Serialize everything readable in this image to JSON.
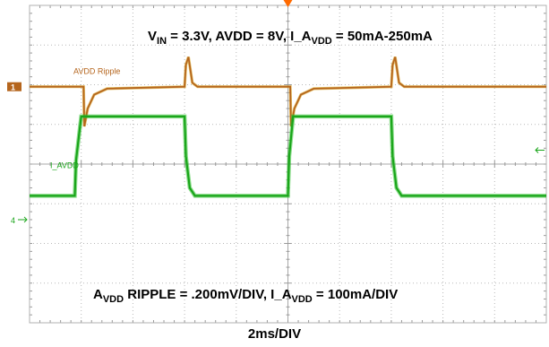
{
  "chart_data": {
    "type": "line",
    "title_top": {
      "vin_main": "V",
      "vin_sub": "IN",
      "vin_value": " = 3.3V, AVDD = 8V, I_A",
      "iavdd_sub": "VDD",
      "iavdd_value": " = 50mA-250mA"
    },
    "title_bottom": {
      "avdd_main": "A",
      "avdd_sub": "VDD",
      "ripple_text": " RIPPLE = .200mV/DIV, I_A",
      "iavdd_sub": "VDD",
      "iavdd_value": " = 100mA/DIV"
    },
    "xlabel": "2ms/DIV",
    "x_unit": "ms",
    "xlim": [
      0,
      20
    ],
    "y_divisions": 8,
    "grid": true,
    "series": [
      {
        "name": "AVDD Ripple",
        "channel": "1",
        "color": "#b5651d",
        "baseline_div": 5.95,
        "x": [
          0,
          2.09,
          2.12,
          2.25,
          2.5,
          3.0,
          6.0,
          6.05,
          6.15,
          6.3,
          6.5,
          8.0,
          10.0,
          10.09,
          10.12,
          10.25,
          10.5,
          11.0,
          14.0,
          14.05,
          14.15,
          14.3,
          14.5,
          16.0,
          20.0
        ],
        "y_div": [
          0,
          0,
          -1.0,
          -0.55,
          -0.2,
          -0.05,
          0,
          0.55,
          0.75,
          0.1,
          0,
          0,
          0,
          0,
          -1.0,
          -0.55,
          -0.2,
          -0.05,
          0,
          0.55,
          0.75,
          0.1,
          0,
          0,
          0
        ]
      },
      {
        "name": "I_AVDD",
        "channel": "4",
        "color": "#1aa51a",
        "y_unit": "mA",
        "scale_mA_per_div": 100,
        "x": [
          0,
          1.75,
          1.8,
          2.0,
          2.15,
          6.0,
          6.05,
          6.2,
          6.4,
          10.0,
          10.05,
          10.2,
          10.35,
          14.0,
          14.05,
          14.2,
          14.4,
          20.0
        ],
        "y": [
          50,
          50,
          140,
          250,
          250,
          250,
          150,
          70,
          50,
          50,
          150,
          250,
          250,
          250,
          150,
          70,
          50,
          50
        ]
      }
    ],
    "markers": [
      {
        "label": "1",
        "series": "AVDD Ripple"
      },
      {
        "label": "4",
        "series": "I_AVDD"
      }
    ]
  }
}
